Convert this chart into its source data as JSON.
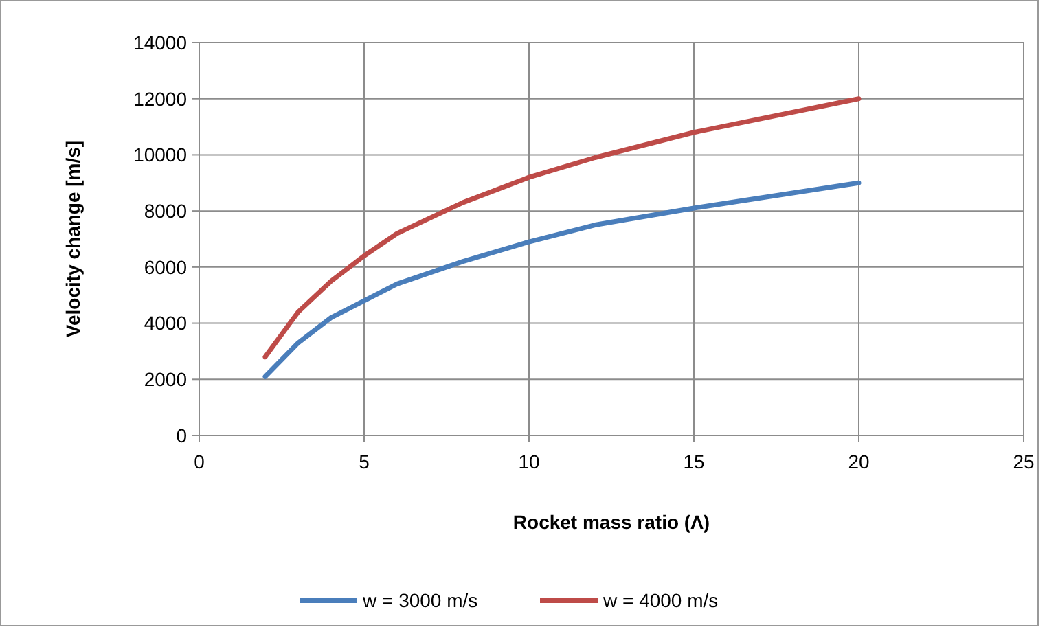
{
  "chart_data": {
    "type": "line",
    "xlabel": "Rocket mass ratio (Λ)",
    "ylabel": "Velocity change [m/s]",
    "x": [
      2,
      3,
      4,
      5,
      6,
      8,
      10,
      12,
      15,
      20
    ],
    "series": [
      {
        "name": "w = 3000 m/s",
        "color": "#4a7ebb",
        "values": [
          2100,
          3300,
          4200,
          4800,
          5400,
          6200,
          6900,
          7500,
          8100,
          9000
        ]
      },
      {
        "name": "w = 4000 m/s",
        "color": "#be4b48",
        "values": [
          2800,
          4400,
          5500,
          6400,
          7200,
          8300,
          9200,
          9900,
          10800,
          12000
        ]
      }
    ],
    "xlim": [
      0,
      25
    ],
    "xticks": [
      0,
      5,
      10,
      15,
      20,
      25
    ],
    "ylim": [
      0,
      14000
    ],
    "yticks": [
      0,
      2000,
      4000,
      6000,
      8000,
      10000,
      12000,
      14000
    ],
    "grid": true,
    "legend": "bottom",
    "marker": "none",
    "line_style": "solid"
  }
}
